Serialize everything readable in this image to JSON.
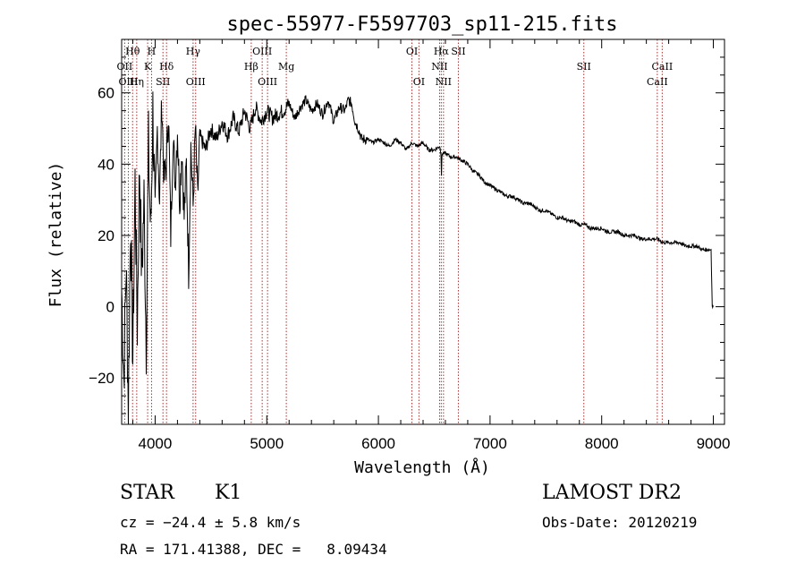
{
  "chart_data": {
    "type": "line",
    "title": "spec-55977-F5597703_sp11-215.fits",
    "xlabel": "Wavelength (Å)",
    "ylabel": "Flux (relative)",
    "xlim": [
      3700,
      9100
    ],
    "ylim": [
      -33,
      75
    ],
    "x_ticks": [
      4000,
      5000,
      6000,
      7000,
      8000,
      9000
    ],
    "x_tick_labels": [
      "4000",
      "5000",
      "6000",
      "7000",
      "8000",
      "9000"
    ],
    "y_ticks": [
      -20,
      0,
      20,
      40,
      60
    ],
    "y_tick_labels": [
      "−20",
      "0",
      "20",
      "40",
      "60"
    ],
    "grid": false,
    "series": [
      {
        "color": "#000000",
        "x": [
          3700,
          3720,
          3740,
          3760,
          3780,
          3800,
          3820,
          3840,
          3860,
          3880,
          3900,
          3920,
          3940,
          3960,
          3980,
          4000,
          4020,
          4040,
          4060,
          4080,
          4100,
          4120,
          4140,
          4160,
          4180,
          4200,
          4220,
          4240,
          4260,
          4280,
          4300,
          4320,
          4340,
          4360,
          4380,
          4400,
          4450,
          4500,
          4550,
          4600,
          4650,
          4700,
          4750,
          4800,
          4850,
          4900,
          4950,
          5000,
          5050,
          5100,
          5150,
          5200,
          5250,
          5300,
          5350,
          5400,
          5450,
          5500,
          5550,
          5600,
          5650,
          5700,
          5730,
          5760,
          5790,
          5820,
          5850,
          5900,
          5950,
          6000,
          6050,
          6100,
          6150,
          6200,
          6250,
          6300,
          6350,
          6400,
          6450,
          6500,
          6550,
          6560,
          6565,
          6570,
          6600,
          6650,
          6700,
          6750,
          6800,
          6850,
          6900,
          6950,
          7000,
          7050,
          7100,
          7150,
          7200,
          7250,
          7300,
          7350,
          7400,
          7450,
          7500,
          7550,
          7600,
          7650,
          7700,
          7750,
          7800,
          7850,
          7900,
          7950,
          8000,
          8050,
          8100,
          8150,
          8200,
          8250,
          8300,
          8350,
          8400,
          8450,
          8500,
          8550,
          8600,
          8650,
          8700,
          8750,
          8800,
          8850,
          8900,
          8950,
          8980,
          8990,
          9000
        ],
        "y": [
          5,
          -20,
          12,
          -28,
          25,
          -15,
          35,
          -5,
          40,
          8,
          30,
          -10,
          45,
          20,
          55,
          25,
          50,
          30,
          58,
          35,
          40,
          55,
          20,
          48,
          35,
          50,
          30,
          45,
          25,
          40,
          10,
          45,
          28,
          50,
          30,
          48,
          44,
          50,
          47,
          52,
          48,
          53,
          49,
          55,
          50,
          56,
          52,
          55,
          53,
          54,
          55,
          57,
          53,
          56,
          58,
          55,
          57,
          54,
          58,
          52,
          56,
          55,
          58,
          57,
          52,
          50,
          47,
          47,
          46,
          47,
          46,
          45,
          47,
          46,
          44,
          46,
          45,
          46,
          44,
          44,
          45,
          43,
          37,
          43,
          43,
          42,
          42,
          41,
          40,
          38,
          37,
          35,
          34,
          33,
          32,
          31,
          31,
          30,
          29,
          29,
          28,
          27,
          27,
          26,
          25,
          25,
          24,
          24,
          23,
          23,
          22,
          22,
          22,
          21,
          21,
          21,
          20,
          20,
          20,
          19,
          19,
          19,
          19,
          18,
          18,
          18,
          18,
          17,
          17,
          17,
          16,
          16,
          16,
          0,
          0
        ]
      }
    ],
    "annotations": [
      {
        "label": "Hθ",
        "x": 3798,
        "row": 1
      },
      {
        "label": "OII",
        "x": 3727,
        "row": 2
      },
      {
        "label": "OIII",
        "x": 3760,
        "row": 3
      },
      {
        "label": "Hη",
        "x": 3835,
        "row": 3
      },
      {
        "label": "H",
        "x": 3968,
        "row": 1
      },
      {
        "label": "K",
        "x": 3933,
        "row": 2
      },
      {
        "label": "Hδ",
        "x": 4102,
        "row": 2
      },
      {
        "label": "SII",
        "x": 4070,
        "row": 3
      },
      {
        "label": "Hγ",
        "x": 4340,
        "row": 1
      },
      {
        "label": "OIII",
        "x": 4363,
        "row": 3
      },
      {
        "label": "OIII",
        "x": 4959,
        "row": 1
      },
      {
        "label": "Hβ",
        "x": 4861,
        "row": 2
      },
      {
        "label": "Mg",
        "x": 5175,
        "row": 2
      },
      {
        "label": "OIII",
        "x": 5007,
        "row": 3
      },
      {
        "label": "OI",
        "x": 6300,
        "row": 1
      },
      {
        "label": "OI",
        "x": 6363,
        "row": 3
      },
      {
        "label": "Hα",
        "x": 6563,
        "row": 1
      },
      {
        "label": "SII",
        "x": 6716,
        "row": 1
      },
      {
        "label": "NII",
        "x": 6548,
        "row": 2
      },
      {
        "label": "NII",
        "x": 6583,
        "row": 3
      },
      {
        "label": "SII",
        "x": 7840,
        "row": 2
      },
      {
        "label": "CaII",
        "x": 8542,
        "row": 2
      },
      {
        "label": "CaII",
        "x": 8498,
        "row": 3
      }
    ]
  },
  "info": {
    "object_class": "STAR",
    "subclass": "K1",
    "survey": "LAMOST DR2",
    "cz": "cz = −24.4 ± 5.8 km/s",
    "obs_date": "Obs-Date: 20120219",
    "radec": "RA = 171.41388, DEC =   8.09434"
  }
}
